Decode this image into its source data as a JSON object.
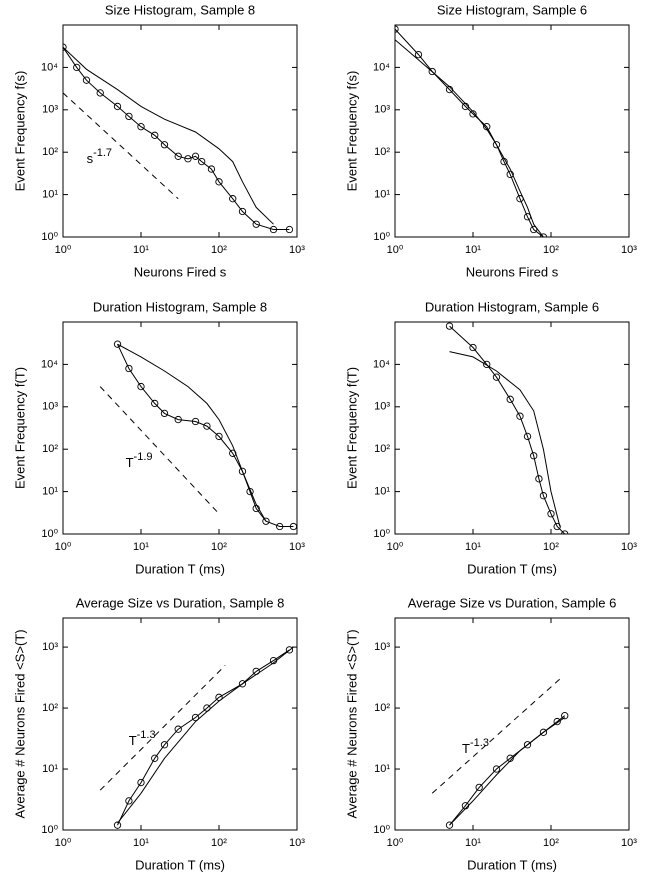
{
  "chart_data": [
    {
      "type": "line",
      "title": "Size Histogram, Sample 8",
      "xlabel": "Neurons Fired s",
      "ylabel": "Event Frequency f(s)",
      "xscale": "log",
      "yscale": "log",
      "xlim": [
        1,
        1000
      ],
      "ylim": [
        1,
        100000
      ],
      "xticks": [
        {
          "value": 1,
          "label": "10⁰"
        },
        {
          "value": 10,
          "label": "10¹"
        },
        {
          "value": 100,
          "label": "10²"
        },
        {
          "value": 1000,
          "label": "10³"
        }
      ],
      "yticks": [
        {
          "value": 1,
          "label": "10⁰"
        },
        {
          "value": 10,
          "label": "10¹"
        },
        {
          "value": 100,
          "label": "10²"
        },
        {
          "value": 1000,
          "label": "10³"
        },
        {
          "value": 10000,
          "label": "10⁴"
        }
      ],
      "annotation": {
        "base": "s",
        "exponent": "-1.7"
      },
      "series": [
        {
          "color": "#000000",
          "marker": "circle",
          "dash": false,
          "x": [
            1,
            1.5,
            2,
            3,
            5,
            7,
            10,
            15,
            20,
            30,
            40,
            50,
            60,
            80,
            100,
            150,
            200,
            300,
            500,
            800
          ],
          "values": [
            30000,
            10000,
            5000,
            2500,
            1200,
            700,
            400,
            250,
            150,
            80,
            70,
            80,
            60,
            40,
            20,
            8,
            4,
            2,
            1.5,
            1.5
          ]
        },
        {
          "color": "#000000",
          "marker": "none",
          "dash": false,
          "x": [
            1,
            2,
            5,
            10,
            20,
            50,
            100,
            150,
            200,
            300,
            500
          ],
          "values": [
            30000,
            9000,
            3000,
            1200,
            600,
            300,
            120,
            60,
            20,
            5,
            2
          ]
        },
        {
          "color": "#000000",
          "marker": "none",
          "dash": true,
          "x": [
            1,
            30
          ],
          "values": [
            2500,
            8
          ]
        }
      ]
    },
    {
      "type": "line",
      "title": "Size Histogram, Sample 6",
      "xlabel": "Neurons Fired s",
      "ylabel": "Event Frequency f(s)",
      "xscale": "log",
      "yscale": "log",
      "xlim": [
        1,
        1000
      ],
      "ylim": [
        1,
        100000
      ],
      "xticks": [
        {
          "value": 1,
          "label": "10⁰"
        },
        {
          "value": 10,
          "label": "10¹"
        },
        {
          "value": 100,
          "label": "10²"
        },
        {
          "value": 1000,
          "label": "10³"
        }
      ],
      "yticks": [
        {
          "value": 1,
          "label": "10⁰"
        },
        {
          "value": 10,
          "label": "10¹"
        },
        {
          "value": 100,
          "label": "10²"
        },
        {
          "value": 1000,
          "label": "10³"
        },
        {
          "value": 10000,
          "label": "10⁴"
        }
      ],
      "series": [
        {
          "color": "#000000",
          "marker": "circle",
          "dash": false,
          "x": [
            1,
            2,
            3,
            5,
            8,
            10,
            15,
            20,
            25,
            30,
            40,
            50,
            60,
            80
          ],
          "values": [
            80000,
            20000,
            8000,
            3000,
            1200,
            800,
            400,
            150,
            60,
            30,
            8,
            3,
            1.5,
            1
          ]
        },
        {
          "color": "#000000",
          "marker": "none",
          "dash": false,
          "x": [
            1,
            2,
            5,
            10,
            15,
            20,
            30,
            40,
            50,
            60,
            80
          ],
          "values": [
            45000,
            15000,
            3500,
            900,
            350,
            150,
            40,
            12,
            5,
            2,
            1
          ]
        }
      ]
    },
    {
      "type": "line",
      "title": "Duration Histogram, Sample 8",
      "xlabel": "Duration T (ms)",
      "ylabel": "Event Frequency f(T)",
      "xscale": "log",
      "yscale": "log",
      "xlim": [
        1,
        1000
      ],
      "ylim": [
        1,
        100000
      ],
      "xticks": [
        {
          "value": 1,
          "label": "10⁰"
        },
        {
          "value": 10,
          "label": "10¹"
        },
        {
          "value": 100,
          "label": "10²"
        },
        {
          "value": 1000,
          "label": "10³"
        }
      ],
      "yticks": [
        {
          "value": 1,
          "label": "10⁰"
        },
        {
          "value": 10,
          "label": "10¹"
        },
        {
          "value": 100,
          "label": "10²"
        },
        {
          "value": 1000,
          "label": "10³"
        },
        {
          "value": 10000,
          "label": "10⁴"
        }
      ],
      "annotation": {
        "base": "T",
        "exponent": "-1.9"
      },
      "series": [
        {
          "color": "#000000",
          "marker": "circle",
          "dash": false,
          "x": [
            5,
            7,
            10,
            15,
            20,
            30,
            50,
            70,
            100,
            150,
            200,
            250,
            300,
            400,
            600,
            900
          ],
          "values": [
            30000,
            8000,
            3000,
            1200,
            700,
            500,
            450,
            350,
            200,
            80,
            30,
            10,
            4,
            2,
            1.5,
            1.5
          ]
        },
        {
          "color": "#000000",
          "marker": "none",
          "dash": false,
          "x": [
            5,
            10,
            20,
            40,
            70,
            100,
            150,
            200,
            300,
            400
          ],
          "values": [
            30000,
            15000,
            7000,
            3000,
            1200,
            500,
            120,
            30,
            5,
            2
          ]
        },
        {
          "color": "#000000",
          "marker": "none",
          "dash": true,
          "x": [
            3,
            100
          ],
          "values": [
            3000,
            3
          ]
        }
      ]
    },
    {
      "type": "line",
      "title": "Duration Histogram, Sample 6",
      "xlabel": "Duration T (ms)",
      "ylabel": "Event Frequency f(T)",
      "xscale": "log",
      "yscale": "log",
      "xlim": [
        1,
        1000
      ],
      "ylim": [
        1,
        100000
      ],
      "xticks": [
        {
          "value": 1,
          "label": "10⁰"
        },
        {
          "value": 10,
          "label": "10¹"
        },
        {
          "value": 100,
          "label": "10²"
        },
        {
          "value": 1000,
          "label": "10³"
        }
      ],
      "yticks": [
        {
          "value": 1,
          "label": "10⁰"
        },
        {
          "value": 10,
          "label": "10¹"
        },
        {
          "value": 100,
          "label": "10²"
        },
        {
          "value": 1000,
          "label": "10³"
        },
        {
          "value": 10000,
          "label": "10⁴"
        }
      ],
      "series": [
        {
          "color": "#000000",
          "marker": "circle",
          "dash": false,
          "x": [
            5,
            10,
            15,
            20,
            30,
            40,
            50,
            60,
            70,
            80,
            100,
            120,
            150
          ],
          "values": [
            80000,
            25000,
            10000,
            5000,
            1500,
            600,
            200,
            70,
            20,
            8,
            3,
            1.5,
            1
          ]
        },
        {
          "color": "#000000",
          "marker": "none",
          "dash": false,
          "x": [
            5,
            10,
            20,
            40,
            60,
            80,
            100,
            130
          ],
          "values": [
            20000,
            15000,
            7000,
            2500,
            800,
            100,
            10,
            1.5
          ]
        }
      ]
    },
    {
      "type": "line",
      "title": "Average Size vs Duration, Sample 8",
      "xlabel": "Duration T (ms)",
      "ylabel": "Average # Neurons Fired <S>(T)",
      "xscale": "log",
      "yscale": "log",
      "xlim": [
        1,
        1000
      ],
      "ylim": [
        1,
        3000
      ],
      "xticks": [
        {
          "value": 1,
          "label": "10⁰"
        },
        {
          "value": 10,
          "label": "10¹"
        },
        {
          "value": 100,
          "label": "10²"
        },
        {
          "value": 1000,
          "label": "10³"
        }
      ],
      "yticks": [
        {
          "value": 1,
          "label": "10⁰"
        },
        {
          "value": 10,
          "label": "10¹"
        },
        {
          "value": 100,
          "label": "10²"
        },
        {
          "value": 1000,
          "label": "10³"
        }
      ],
      "annotation": {
        "base": "T",
        "exponent": "-1.3"
      },
      "series": [
        {
          "color": "#000000",
          "marker": "circle",
          "dash": false,
          "x": [
            5,
            7,
            10,
            15,
            20,
            30,
            50,
            70,
            100,
            200,
            300,
            500,
            800
          ],
          "values": [
            1.2,
            3,
            6,
            15,
            25,
            45,
            70,
            100,
            150,
            250,
            400,
            600,
            900
          ]
        },
        {
          "color": "#000000",
          "marker": "none",
          "dash": false,
          "x": [
            5,
            10,
            20,
            50,
            100,
            200,
            500,
            900
          ],
          "values": [
            1.3,
            4,
            15,
            60,
            130,
            250,
            550,
            1000
          ]
        },
        {
          "color": "#000000",
          "marker": "none",
          "dash": true,
          "x": [
            3,
            120
          ],
          "values": [
            4.5,
            500
          ]
        }
      ]
    },
    {
      "type": "line",
      "title": "Average Size vs Duration, Sample 6",
      "xlabel": "Duration T (ms)",
      "ylabel": "Average # Neurons Fired <S>(T)",
      "xscale": "log",
      "yscale": "log",
      "xlim": [
        1,
        1000
      ],
      "ylim": [
        1,
        3000
      ],
      "xticks": [
        {
          "value": 1,
          "label": "10⁰"
        },
        {
          "value": 10,
          "label": "10¹"
        },
        {
          "value": 100,
          "label": "10²"
        },
        {
          "value": 1000,
          "label": "10³"
        }
      ],
      "yticks": [
        {
          "value": 1,
          "label": "10⁰"
        },
        {
          "value": 10,
          "label": "10¹"
        },
        {
          "value": 100,
          "label": "10²"
        },
        {
          "value": 1000,
          "label": "10³"
        }
      ],
      "annotation": {
        "base": "T",
        "exponent": "-1.3"
      },
      "series": [
        {
          "color": "#000000",
          "marker": "circle",
          "dash": false,
          "x": [
            5,
            8,
            12,
            20,
            30,
            50,
            80,
            120,
            150
          ],
          "values": [
            1.2,
            2.5,
            5,
            10,
            15,
            25,
            40,
            60,
            75
          ]
        },
        {
          "color": "#000000",
          "marker": "none",
          "dash": false,
          "x": [
            5,
            10,
            20,
            40,
            80,
            150
          ],
          "values": [
            1.2,
            3,
            8,
            20,
            40,
            70
          ]
        },
        {
          "color": "#000000",
          "marker": "none",
          "dash": true,
          "x": [
            3,
            130
          ],
          "values": [
            4,
            300
          ]
        }
      ]
    }
  ]
}
